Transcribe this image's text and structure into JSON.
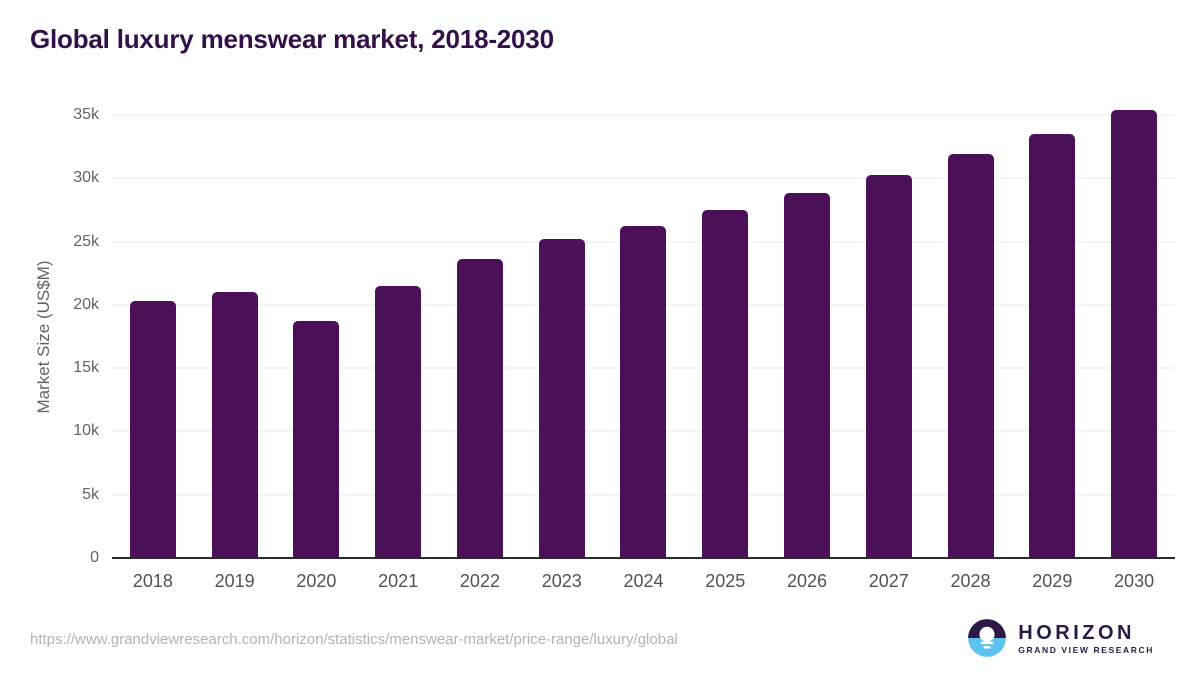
{
  "title": "Global luxury menswear market, 2018-2030",
  "chart_data": {
    "type": "bar",
    "title": "Global luxury menswear market, 2018-2030",
    "categories": [
      "2018",
      "2019",
      "2020",
      "2021",
      "2022",
      "2023",
      "2024",
      "2025",
      "2026",
      "2027",
      "2028",
      "2029",
      "2030"
    ],
    "values": [
      20300,
      21000,
      18700,
      21500,
      23600,
      25200,
      26200,
      27500,
      28800,
      30300,
      31900,
      33500,
      35400
    ],
    "xlabel": "",
    "ylabel": "Market Size (US$M)",
    "ylim": [
      0,
      35000
    ],
    "yticks": {
      "values": [
        0,
        5000,
        10000,
        15000,
        20000,
        25000,
        30000,
        35000
      ],
      "labels": [
        "0",
        "5k",
        "10k",
        "15k",
        "20k",
        "25k",
        "30k",
        "35k"
      ]
    },
    "grid": true,
    "legend": "none",
    "bar_color": "#4a1158"
  },
  "colors": {
    "bar": "#4a1158",
    "title_text": "#331048",
    "gridline": "#e8e8e8",
    "axis_line": "#2b2b2b",
    "tick_text": "#646464",
    "logo_dark": "#2c1a45",
    "logo_blue": "#5cc3f0"
  },
  "footer": {
    "source_url": "https://www.grandviewresearch.com/horizon/statistics/menswear-market/price-range/luxury/global",
    "logo": {
      "name": "HORIZON",
      "subtitle": "GRAND VIEW RESEARCH"
    }
  }
}
